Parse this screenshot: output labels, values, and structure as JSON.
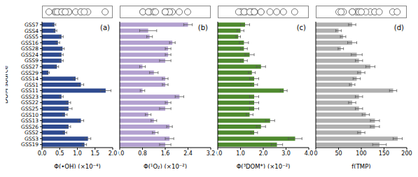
{
  "chart_data": [
    {
      "type": "bar",
      "orientation": "horizontal",
      "title": "(a)",
      "ylabel": "DOM source",
      "xlabel": "Φ(•OH) (×10⁻⁴)",
      "categories": [
        "GSS7",
        "GSS4",
        "GSS5",
        "GSS16",
        "GSS28",
        "GSS24",
        "GSS9",
        "GSS27",
        "GSS29",
        "GSS14",
        "GSS1",
        "GSS11",
        "GSS23",
        "GSS22",
        "GSS25",
        "GSS10",
        "GSS13",
        "GSS26",
        "GSS2",
        "GSS3",
        "GSS19"
      ],
      "values": [
        0.35,
        0.38,
        0.55,
        0.45,
        0.58,
        0.55,
        0.55,
        0.42,
        0.18,
        0.95,
        1.1,
        1.8,
        0.55,
        0.75,
        0.75,
        0.65,
        1.1,
        0.75,
        0.65,
        1.3,
        1.2
      ],
      "errors": [
        0.04,
        0.04,
        0.05,
        0.05,
        0.05,
        0.05,
        0.05,
        0.05,
        0.03,
        0.06,
        0.08,
        0.15,
        0.05,
        0.06,
        0.1,
        0.06,
        0.08,
        0.06,
        0.05,
        0.08,
        0.06
      ],
      "color": "#2e4a8f",
      "xlim": [
        0,
        2
      ],
      "xticks": [
        {
          "value": 0,
          "label": "0.0"
        },
        {
          "value": 0.5,
          "label": "0.5"
        },
        {
          "value": 1,
          "label": "1.0"
        },
        {
          "value": 1.5,
          "label": "1.5"
        },
        {
          "value": 2,
          "label": "2.0"
        }
      ]
    },
    {
      "type": "bar",
      "orientation": "horizontal",
      "title": "(b)",
      "xlabel": "Φ(¹O₂) (×10⁻²)",
      "tick_labels": "x",
      "categories": [
        "GSS7",
        "GSS4",
        "GSS5",
        "GSS16",
        "GSS28",
        "GSS24",
        "GSS9",
        "GSS27",
        "GSS29",
        "GSS14",
        "GSS1",
        "GSS11",
        "GSS23",
        "GSS22",
        "GSS25",
        "GSS10",
        "GSS13",
        "GSS26",
        "GSS2",
        "GSS3",
        "GSS19"
      ],
      "values": [
        2.4,
        1.0,
        1.05,
        1.85,
        1.7,
        1.7,
        1.6,
        0.8,
        1.2,
        1.6,
        1.6,
        0.8,
        2.1,
        1.7,
        1.6,
        1.0,
        1.2,
        1.75,
        1.25,
        1.75,
        1.6
      ],
      "errors": [
        0.15,
        0.3,
        0.1,
        0.1,
        0.1,
        0.1,
        0.2,
        0.1,
        0.15,
        0.1,
        0.1,
        0.08,
        0.15,
        0.1,
        0.2,
        0.1,
        0.1,
        0.1,
        0.1,
        0.15,
        0.2
      ],
      "color": "#b3a1d0",
      "xlim": [
        0,
        3.2
      ],
      "xticks": [
        {
          "value": 0,
          "label": "0.0"
        },
        0.8,
        1.6,
        2.4,
        3.2
      ]
    },
    {
      "type": "bar",
      "orientation": "horizontal",
      "title": "(c)",
      "xlabel": "Φ(³DOM*) (×10⁻²)",
      "tick_labels": "x",
      "categories": [
        "GSS7",
        "GSS4",
        "GSS5",
        "GSS16",
        "GSS28",
        "GSS24",
        "GSS9",
        "GSS27",
        "GSS29",
        "GSS14",
        "GSS1",
        "GSS11",
        "GSS23",
        "GSS22",
        "GSS25",
        "GSS10",
        "GSS13",
        "GSS26",
        "GSS2",
        "GSS3",
        "GSS19"
      ],
      "values": [
        1.2,
        1.0,
        0.9,
        1.15,
        1.15,
        1.4,
        1.15,
        1.9,
        1.5,
        1.6,
        1.6,
        2.9,
        1.6,
        1.6,
        1.6,
        1.4,
        2.3,
        1.9,
        1.6,
        3.4,
        2.6
      ],
      "errors": [
        0.2,
        0.15,
        0.1,
        0.2,
        0.15,
        0.2,
        0.15,
        0.2,
        0.15,
        0.2,
        0.15,
        0.15,
        0.2,
        0.2,
        0.2,
        0.15,
        0.2,
        0.2,
        0.15,
        0.3,
        0.25
      ],
      "color": "#4e8a2e",
      "xlim": [
        0,
        4
      ],
      "xticks": [
        {
          "value": 0,
          "label": "0.0"
        },
        {
          "value": 1,
          "label": "1.0"
        },
        {
          "value": 2,
          "label": "2.0"
        },
        {
          "value": 3,
          "label": "3.0"
        },
        {
          "value": 4,
          "label": "4.0"
        }
      ]
    },
    {
      "type": "bar",
      "orientation": "horizontal",
      "title": "(d)",
      "xlabel": "f(TMP)",
      "tick_labels": "x",
      "categories": [
        "GSS7",
        "GSS4",
        "GSS5",
        "GSS16",
        "GSS28",
        "GSS24",
        "GSS9",
        "GSS27",
        "GSS29",
        "GSS14",
        "GSS1",
        "GSS11",
        "GSS23",
        "GSS22",
        "GSS25",
        "GSS10",
        "GSS13",
        "GSS26",
        "GSS2",
        "GSS3",
        "GSS19"
      ],
      "values": [
        80,
        50,
        60,
        80,
        55,
        90,
        95,
        120,
        100,
        90,
        80,
        170,
        95,
        80,
        95,
        110,
        130,
        130,
        100,
        180,
        140
      ],
      "errors": [
        8,
        6,
        6,
        10,
        6,
        12,
        8,
        10,
        8,
        8,
        6,
        8,
        8,
        8,
        8,
        8,
        10,
        10,
        8,
        10,
        15
      ],
      "color": "#b0b0b0",
      "xlim": [
        0,
        200
      ],
      "xticks": [
        0,
        50,
        100,
        150,
        200
      ]
    }
  ]
}
